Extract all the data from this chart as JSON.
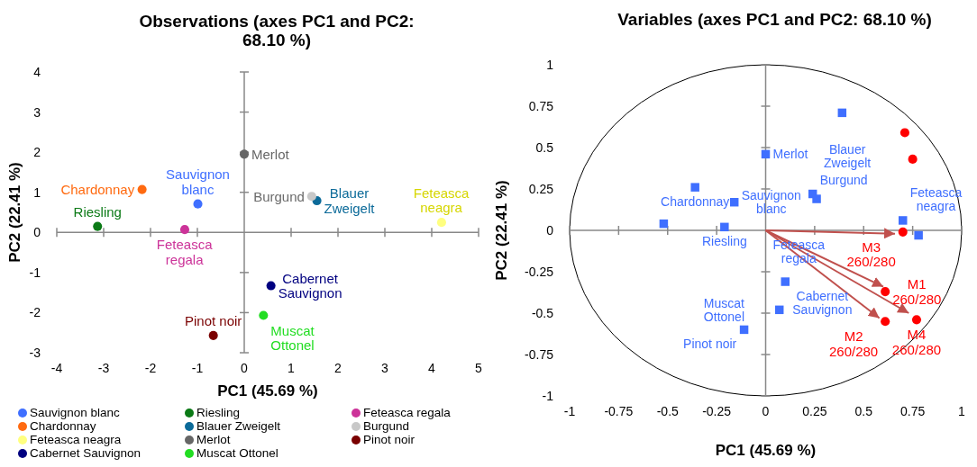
{
  "chart_data": [
    {
      "type": "scatter",
      "title": "Observations (axes PC1 and PC2: 68.10 %)",
      "xlabel": "PC1 (45.69 %)",
      "ylabel": "PC2 (22.41 %)",
      "xlim": [
        -4,
        5
      ],
      "ylim": [
        -3,
        4
      ],
      "xticks": [
        -4,
        -3,
        -2,
        -1,
        0,
        1,
        2,
        3,
        4,
        5
      ],
      "yticks": [
        -3,
        -2,
        -1,
        0,
        1,
        2,
        3,
        4
      ],
      "marker": "circle",
      "legend": "bottom",
      "series": [
        {
          "name": "Sauvignon blanc",
          "color": "#3f6fff",
          "x": [
            -0.99
          ],
          "values": [
            0.71
          ]
        },
        {
          "name": "Riesling",
          "color": "#0b7a16",
          "x": [
            -3.13
          ],
          "values": [
            0.15
          ]
        },
        {
          "name": "Feteasca regala",
          "color": "#cc3399",
          "x": [
            -1.27
          ],
          "values": [
            0.07
          ]
        },
        {
          "name": "Chardonnay",
          "color": "#ff6a10",
          "x": [
            -2.18
          ],
          "values": [
            1.07
          ]
        },
        {
          "name": "Blauer Zweigelt",
          "color": "#0b6a99",
          "x": [
            1.55
          ],
          "values": [
            0.79
          ]
        },
        {
          "name": "Burgund",
          "color": "#c8c8c8",
          "x": [
            1.44
          ],
          "values": [
            0.9
          ]
        },
        {
          "name": "Feteasca neagra",
          "color": "#ffff80",
          "x": [
            4.21
          ],
          "values": [
            0.25
          ]
        },
        {
          "name": "Merlot",
          "color": "#666666",
          "x": [
            0
          ],
          "values": [
            1.95
          ]
        },
        {
          "name": "Pinot noir",
          "color": "#7a0000",
          "x": [
            -0.66
          ],
          "values": [
            -2.57
          ]
        },
        {
          "name": "Cabernet Sauvignon",
          "color": "#000080",
          "x": [
            0.57
          ],
          "values": [
            -1.33
          ]
        },
        {
          "name": "Muscat Ottonel",
          "color": "#22dd22",
          "x": [
            0.41
          ],
          "values": [
            -2.07
          ]
        }
      ]
    },
    {
      "type": "scatter",
      "title": "Variables (axes PC1 and PC2: 68.10 %)",
      "xlabel": "PC1 (45.69 %)",
      "ylabel": "PC2 (22.41 %)",
      "xlim": [
        -1,
        1
      ],
      "ylim": [
        -1,
        1
      ],
      "xticks": [
        -1,
        -0.75,
        -0.5,
        -0.25,
        0,
        0.25,
        0.5,
        0.75,
        1
      ],
      "yticks": [
        -1,
        -0.75,
        -0.5,
        -0.25,
        0,
        0.25,
        0.5,
        0.75,
        1
      ],
      "series": [
        {
          "type": "line",
          "color": "#c0504d",
          "x": [
            0,
            0.66
          ],
          "values": [
            0,
            -0.02
          ]
        },
        {
          "type": "line",
          "color": "#c0504d",
          "x": [
            0,
            0.6
          ],
          "values": [
            0,
            -0.34
          ]
        },
        {
          "type": "line",
          "color": "#c0504d",
          "x": [
            0,
            0.73
          ],
          "values": [
            0,
            -0.5
          ]
        },
        {
          "type": "line",
          "color": "#c0504d",
          "x": [
            0,
            0.58
          ],
          "values": [
            0,
            -0.53
          ]
        },
        {
          "type": "scatter",
          "marker": "square",
          "color": "#3f6fff",
          "x": [
            0.39,
            0,
            -0.36,
            -0.16,
            0.24,
            0.26,
            0.7,
            0.78,
            -0.52,
            -0.21,
            0.1,
            0.07,
            -0.11
          ],
          "values": [
            0.71,
            0.46,
            0.26,
            0.17,
            0.22,
            0.19,
            0.06,
            -0.03,
            0.04,
            0.02,
            -0.31,
            -0.48,
            -0.6
          ]
        },
        {
          "type": "scatter",
          "marker": "circle",
          "color": "#ff0000",
          "x": [
            0.71,
            0.75
          ],
          "values": [
            0.59,
            0.43
          ]
        },
        {
          "type": "scatter",
          "marker": "circle",
          "name": "M3 260/280",
          "color": "#ff0000",
          "x": [
            0.7
          ],
          "values": [
            -0.01
          ]
        },
        {
          "type": "scatter",
          "marker": "circle",
          "name": "M1 260/280",
          "color": "#ff0000",
          "x": [
            0.61
          ],
          "values": [
            -0.37
          ]
        },
        {
          "type": "scatter",
          "marker": "circle",
          "name": "M4 260/280",
          "color": "#ff0000",
          "x": [
            0.77
          ],
          "values": [
            -0.54
          ]
        },
        {
          "type": "scatter",
          "marker": "circle",
          "name": "M2 260/280",
          "color": "#ff0000",
          "x": [
            0.61
          ],
          "values": [
            -0.55
          ]
        }
      ],
      "annotations": [
        {
          "text": "Merlot",
          "x": 0,
          "y": 0.46
        },
        {
          "text": "Chardonnay",
          "x": -0.36,
          "y": 0.26
        },
        {
          "text": "Sauvignon blanc",
          "x": -0.16,
          "y": 0.17
        },
        {
          "text": "Burgund",
          "x": 0.24,
          "y": 0.22
        },
        {
          "text": "Blauer Zweigelt",
          "x": 0.26,
          "y": 0.19
        },
        {
          "text": "Feteasca neagra",
          "x": 0.7,
          "y": 0.06
        },
        {
          "text": "Riesling",
          "x": -0.21,
          "y": 0.02
        },
        {
          "text": "Feteasca regala",
          "x": 0,
          "y": 0
        },
        {
          "text": "Cabernet Sauvignon",
          "x": 0.1,
          "y": -0.31
        },
        {
          "text": "Muscat Ottonel",
          "x": 0.07,
          "y": -0.48
        },
        {
          "text": "Pinot noir",
          "x": -0.11,
          "y": -0.6
        }
      ]
    }
  ]
}
